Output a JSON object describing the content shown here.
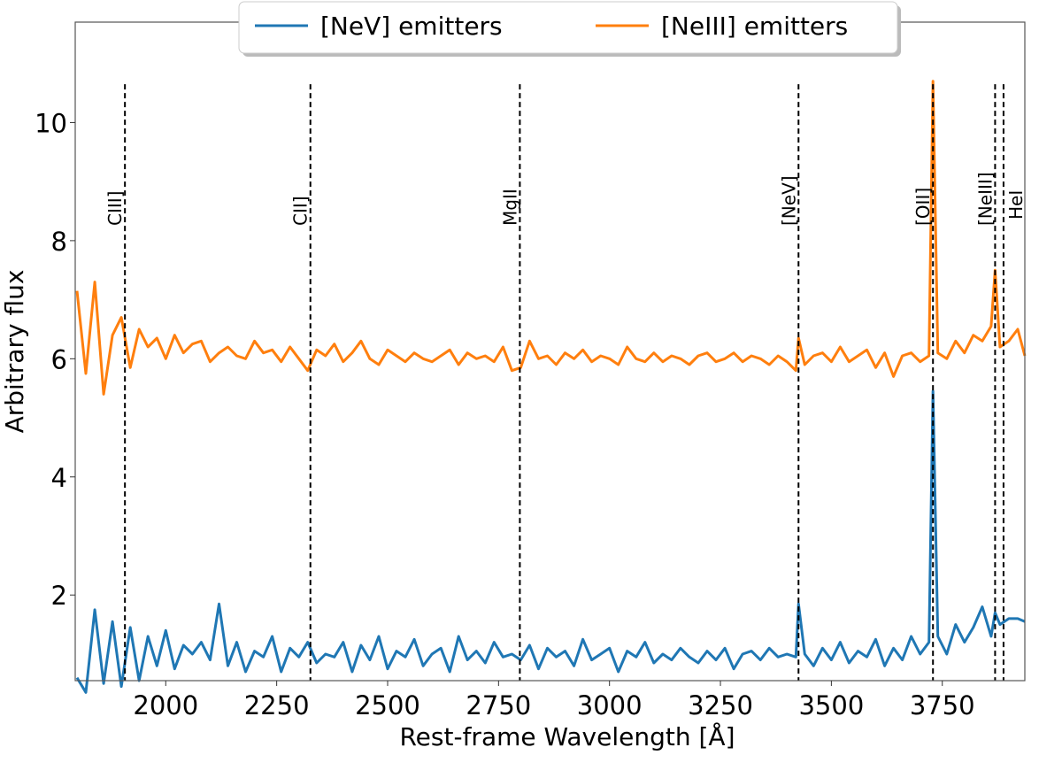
{
  "chart_data": {
    "type": "line",
    "title": "",
    "xlabel": "Rest-frame Wavelength [Å]",
    "ylabel": "Arbitrary flux",
    "xlim": [
      1796,
      3936
    ],
    "ylim": [
      0.55,
      11.7
    ],
    "xticks": [
      2000,
      2250,
      2500,
      2750,
      3000,
      3250,
      3500,
      3750
    ],
    "yticks": [
      2,
      4,
      6,
      8,
      10
    ],
    "grid": false,
    "legend_position": "upper-center",
    "x": [
      1800,
      1820,
      1840,
      1860,
      1880,
      1900,
      1920,
      1940,
      1960,
      1980,
      2000,
      2020,
      2040,
      2060,
      2080,
      2100,
      2120,
      2140,
      2160,
      2180,
      2200,
      2220,
      2240,
      2260,
      2280,
      2300,
      2320,
      2340,
      2360,
      2380,
      2400,
      2420,
      2440,
      2460,
      2480,
      2500,
      2520,
      2540,
      2560,
      2580,
      2600,
      2620,
      2640,
      2660,
      2680,
      2700,
      2720,
      2740,
      2760,
      2780,
      2800,
      2820,
      2840,
      2860,
      2880,
      2900,
      2920,
      2940,
      2960,
      2980,
      3000,
      3020,
      3040,
      3060,
      3080,
      3100,
      3120,
      3140,
      3160,
      3180,
      3200,
      3220,
      3240,
      3260,
      3280,
      3300,
      3320,
      3340,
      3360,
      3380,
      3400,
      3420,
      3426,
      3440,
      3460,
      3480,
      3500,
      3520,
      3540,
      3560,
      3580,
      3600,
      3620,
      3640,
      3660,
      3680,
      3700,
      3720,
      3729,
      3740,
      3760,
      3780,
      3800,
      3820,
      3840,
      3860,
      3869,
      3880,
      3900,
      3920,
      3936
    ],
    "series": [
      {
        "name": "[NeV] emitters",
        "color": "#1f77b4",
        "values": [
          0.6,
          0.35,
          1.75,
          0.5,
          1.55,
          0.45,
          1.45,
          0.55,
          1.3,
          0.8,
          1.4,
          0.75,
          1.15,
          1.0,
          1.2,
          0.9,
          1.85,
          0.8,
          1.2,
          0.7,
          1.05,
          0.95,
          1.3,
          0.7,
          1.1,
          0.95,
          1.2,
          0.85,
          1.0,
          0.95,
          1.2,
          0.7,
          1.15,
          0.9,
          1.3,
          0.75,
          1.05,
          0.95,
          1.25,
          0.8,
          1.0,
          1.1,
          0.7,
          1.3,
          0.9,
          1.05,
          0.85,
          1.2,
          0.95,
          1.0,
          0.9,
          1.15,
          0.75,
          1.1,
          0.95,
          1.05,
          0.8,
          1.25,
          0.9,
          1.0,
          1.1,
          0.7,
          1.05,
          0.95,
          1.2,
          0.85,
          1.0,
          0.9,
          1.1,
          0.95,
          0.85,
          1.05,
          0.9,
          1.1,
          0.75,
          1.0,
          1.05,
          0.9,
          1.1,
          0.95,
          1.0,
          0.95,
          1.85,
          1.0,
          0.8,
          1.1,
          0.9,
          1.2,
          0.85,
          1.05,
          0.95,
          1.25,
          0.8,
          1.1,
          0.9,
          1.3,
          1.0,
          1.2,
          5.45,
          1.3,
          1.0,
          1.5,
          1.2,
          1.45,
          1.8,
          1.3,
          1.7,
          1.5,
          1.6,
          1.6,
          1.55
        ]
      },
      {
        "name": "[NeIII] emitters",
        "color": "#ff7f0e",
        "values": [
          7.15,
          5.75,
          7.3,
          5.4,
          6.4,
          6.7,
          5.85,
          6.5,
          6.2,
          6.35,
          6.0,
          6.4,
          6.1,
          6.25,
          6.3,
          5.95,
          6.1,
          6.2,
          6.05,
          6.0,
          6.3,
          6.1,
          6.15,
          5.95,
          6.2,
          6.0,
          5.8,
          6.15,
          6.05,
          6.25,
          5.95,
          6.1,
          6.3,
          6.0,
          5.9,
          6.15,
          6.05,
          5.95,
          6.1,
          6.0,
          5.95,
          6.05,
          6.15,
          5.9,
          6.1,
          6.0,
          6.05,
          5.95,
          6.2,
          5.8,
          5.85,
          6.3,
          6.0,
          6.05,
          5.9,
          6.1,
          6.0,
          6.15,
          5.95,
          6.05,
          6.0,
          5.9,
          6.2,
          6.0,
          5.95,
          6.1,
          5.95,
          6.05,
          6.0,
          5.9,
          6.05,
          6.1,
          5.95,
          6.0,
          6.1,
          5.95,
          6.05,
          6.0,
          5.9,
          6.05,
          5.95,
          5.8,
          6.35,
          5.9,
          6.05,
          6.1,
          5.95,
          6.2,
          5.95,
          6.05,
          6.15,
          5.85,
          6.1,
          5.7,
          6.05,
          6.1,
          5.95,
          6.05,
          10.7,
          6.1,
          6.0,
          6.3,
          6.1,
          6.4,
          6.3,
          6.55,
          7.5,
          6.2,
          6.3,
          6.5,
          6.05
        ]
      }
    ],
    "vlines": [
      {
        "label": "CIII]",
        "x": 1908
      },
      {
        "label": "CII]",
        "x": 2326
      },
      {
        "label": "MgII",
        "x": 2798
      },
      {
        "label": "[NeV]",
        "x": 3426
      },
      {
        "label": "[OII]",
        "x": 3729
      },
      {
        "label": "[NeIII]",
        "x": 3869
      },
      {
        "label": "HeI",
        "x": 3888
      }
    ],
    "vline_top": 10.65
  }
}
